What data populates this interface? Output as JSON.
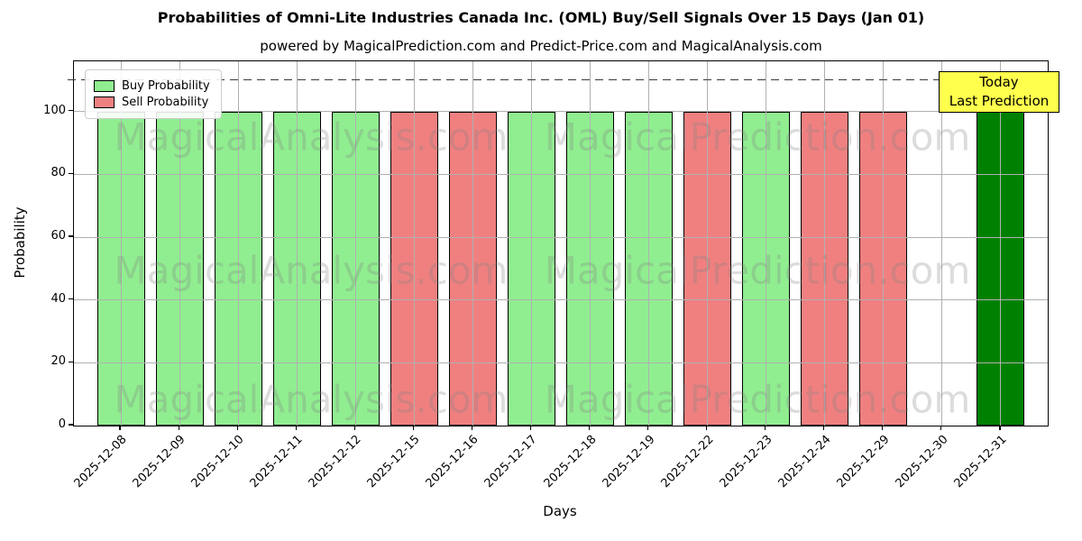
{
  "chart_data": {
    "type": "bar",
    "title": "Probabilities of Omni-Lite Industries Canada Inc. (OML) Buy/Sell Signals Over 15 Days (Jan 01)",
    "subtitle": "powered by MagicalPrediction.com and Predict-Price.com and MagicalAnalysis.com",
    "xlabel": "Days",
    "ylabel": "Probability",
    "ylim": [
      0,
      116
    ],
    "yticks": [
      0,
      20,
      40,
      60,
      80,
      100
    ],
    "grid": true,
    "legend_position": "upper left",
    "dashed_line_y": 110,
    "categories": [
      "2025-12-08",
      "2025-12-09",
      "2025-12-10",
      "2025-12-11",
      "2025-12-12",
      "2025-12-15",
      "2025-12-16",
      "2025-12-17",
      "2025-12-18",
      "2025-12-19",
      "2025-12-22",
      "2025-12-23",
      "2025-12-24",
      "2025-12-29",
      "2025-12-30",
      "2025-12-31"
    ],
    "series": [
      {
        "name": "Buy Probability",
        "color": "#90ee90",
        "values": [
          100,
          100,
          100,
          100,
          100,
          0,
          0,
          100,
          100,
          100,
          0,
          100,
          0,
          0,
          0,
          0
        ]
      },
      {
        "name": "Sell Probability",
        "color": "#f08080",
        "values": [
          0,
          0,
          0,
          0,
          0,
          100,
          100,
          0,
          0,
          0,
          100,
          0,
          100,
          100,
          0,
          0
        ]
      },
      {
        "name": "Today Last Prediction",
        "color": "#008000",
        "values": [
          0,
          0,
          0,
          0,
          0,
          0,
          0,
          0,
          0,
          0,
          0,
          0,
          0,
          0,
          0,
          100
        ]
      }
    ],
    "legend": {
      "items": [
        {
          "label": "Buy Probability",
          "color": "#90ee90"
        },
        {
          "label": "Sell Probability",
          "color": "#f08080"
        }
      ]
    },
    "annotation": {
      "line1": "Today",
      "line2": "Last Prediction",
      "bg": "#ffff4d",
      "border": "#000000"
    },
    "watermarks": {
      "left": "MagicalAnalysis.com",
      "right": "MagicalPrediction.com",
      "color": "#808080"
    },
    "colors": {
      "grid": "#b0b0b0",
      "spine": "#000000",
      "dashed_line": "#3a3a3a",
      "background": "#ffffff"
    }
  }
}
